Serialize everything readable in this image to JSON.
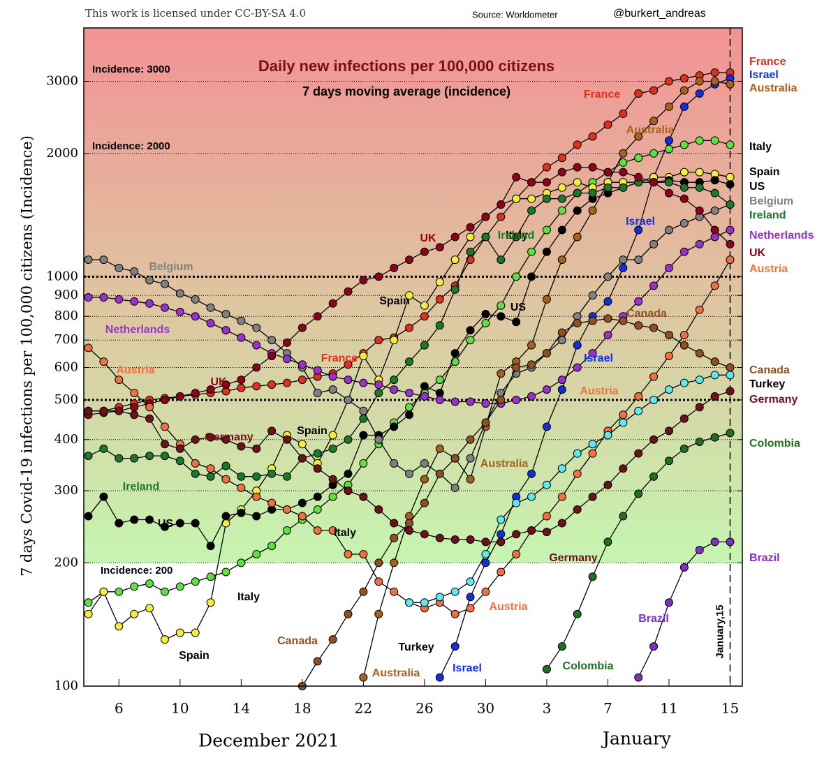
{
  "header": {
    "license": "This work is licensed under CC-BY-SA 4.0",
    "source": "Source:  Worldometer",
    "author": "@burkert_andreas"
  },
  "chart_data": {
    "type": "line",
    "log_scale_y": true,
    "title": "Daily new infections per 100,000 citizens",
    "subtitle": "7 days moving average (incidence)",
    "y_label": "7 days Covid-19 infections per 100,000 citizens (Incidence)",
    "x_label": "December 2021",
    "x_label_2": "January",
    "annotations": [
      "Incidence: 3000",
      "Incidence: 2000",
      "Incidence: 200"
    ],
    "marker_label": "January,15",
    "marker_x": 46,
    "shaded_above": 200,
    "major_grid": [
      500,
      1000
    ],
    "x": [
      4,
      5,
      6,
      7,
      8,
      9,
      10,
      11,
      12,
      13,
      14,
      15,
      16,
      17,
      18,
      19,
      20,
      21,
      22,
      23,
      24,
      25,
      26,
      27,
      28,
      29,
      30,
      31,
      32,
      33,
      34,
      35,
      36,
      37,
      38,
      39,
      40,
      41,
      42,
      43,
      44,
      45,
      46
    ],
    "xlim": [
      3.7,
      46.8
    ],
    "xticks": [
      6,
      10,
      14,
      18,
      22,
      26,
      30,
      {
        "value": 34,
        "label": "3"
      },
      {
        "value": 38,
        "label": "7"
      },
      {
        "value": 42,
        "label": "11"
      },
      {
        "value": 46,
        "label": "15"
      }
    ],
    "ylim": [
      100,
      4050
    ],
    "yticks": [
      100,
      200,
      300,
      400,
      500,
      600,
      700,
      800,
      900,
      1000,
      2000,
      3000
    ],
    "series": [
      {
        "name": "France",
        "color": "#e0301e",
        "values": [
          470,
          470,
          480,
          490,
          500,
          505,
          510,
          515,
          520,
          525,
          535,
          540,
          545,
          550,
          560,
          570,
          580,
          610,
          650,
          700,
          710,
          750,
          800,
          880,
          950,
          1100,
          1250,
          1400,
          1550,
          1700,
          1850,
          1950,
          2100,
          2200,
          2350,
          2500,
          2800,
          2850,
          3000,
          3050,
          3100,
          3150,
          3150
        ]
      },
      {
        "name": "Israel",
        "color": "#1030e0",
        "values": [
          null,
          null,
          null,
          null,
          null,
          null,
          null,
          null,
          null,
          null,
          null,
          null,
          null,
          null,
          null,
          null,
          null,
          null,
          null,
          null,
          null,
          null,
          null,
          105,
          125,
          165,
          200,
          235,
          290,
          330,
          430,
          530,
          680,
          800,
          870,
          1050,
          1300,
          1750,
          2150,
          2600,
          2800,
          2950,
          3050
        ]
      },
      {
        "name": "Australia",
        "color": "#a8601a",
        "values": [
          null,
          null,
          null,
          null,
          null,
          null,
          null,
          null,
          null,
          null,
          null,
          null,
          null,
          null,
          null,
          null,
          null,
          null,
          105,
          150,
          200,
          260,
          320,
          380,
          360,
          320,
          430,
          580,
          620,
          680,
          880,
          1100,
          1250,
          1450,
          1700,
          2000,
          2200,
          2400,
          2600,
          2850,
          3000,
          3000,
          2950
        ]
      },
      {
        "name": "Italy",
        "color": "#5ee040",
        "values": [
          160,
          170,
          170,
          175,
          178,
          170,
          175,
          180,
          185,
          190,
          200,
          210,
          220,
          240,
          255,
          270,
          290,
          310,
          350,
          390,
          440,
          480,
          520,
          560,
          620,
          700,
          770,
          850,
          1000,
          1150,
          1300,
          1450,
          1600,
          1700,
          1800,
          1900,
          1950,
          2000,
          2050,
          2100,
          2150,
          2150,
          2100
        ]
      },
      {
        "name": "Spain",
        "color": "#f4ee3a",
        "values": [
          150,
          170,
          140,
          150,
          155,
          130,
          135,
          135,
          160,
          250,
          270,
          300,
          340,
          410,
          390,
          350,
          410,
          500,
          640,
          560,
          700,
          900,
          850,
          970,
          1100,
          1250,
          1400,
          1500,
          1550,
          1550,
          1600,
          1650,
          1700,
          1650,
          1700,
          1700,
          1700,
          1750,
          1750,
          1800,
          1800,
          1780,
          1750
        ]
      },
      {
        "name": "US",
        "color": "#000000",
        "values": [
          260,
          290,
          250,
          255,
          255,
          245,
          250,
          250,
          220,
          260,
          265,
          260,
          270,
          270,
          280,
          290,
          310,
          330,
          410,
          410,
          430,
          460,
          540,
          520,
          650,
          740,
          810,
          800,
          775,
          1000,
          1150,
          1300,
          1450,
          1550,
          1600,
          1650,
          1700,
          1700,
          1720,
          1700,
          1700,
          1720,
          1680
        ]
      },
      {
        "name": "Belgium",
        "color": "#808080",
        "values": [
          1100,
          1100,
          1050,
          1030,
          980,
          960,
          910,
          880,
          840,
          810,
          780,
          750,
          700,
          650,
          600,
          520,
          530,
          500,
          470,
          400,
          350,
          330,
          350,
          330,
          305,
          360,
          440,
          520,
          580,
          600,
          650,
          700,
          800,
          900,
          1000,
          1100,
          1100,
          1200,
          1300,
          1350,
          1400,
          1450,
          1500
        ]
      },
      {
        "name": "Ireland",
        "color": "#1a7a2a",
        "values": [
          365,
          380,
          360,
          360,
          365,
          365,
          355,
          330,
          325,
          345,
          325,
          325,
          330,
          325,
          360,
          370,
          380,
          400,
          450,
          520,
          560,
          620,
          680,
          760,
          930,
          1150,
          1250,
          1100,
          1250,
          1450,
          1550,
          1550,
          1600,
          1600,
          1650,
          1650,
          1700,
          1700,
          1700,
          1650,
          1650,
          1600,
          1500
        ]
      },
      {
        "name": "Netherlands",
        "color": "#9a30d0",
        "values": [
          890,
          890,
          880,
          870,
          860,
          840,
          820,
          800,
          770,
          740,
          710,
          680,
          650,
          630,
          610,
          590,
          570,
          560,
          550,
          545,
          530,
          520,
          510,
          500,
          495,
          495,
          490,
          490,
          500,
          510,
          530,
          560,
          600,
          650,
          720,
          800,
          870,
          950,
          1050,
          1150,
          1200,
          1250,
          1300
        ]
      },
      {
        "name": "UK",
        "color": "#900018",
        "values": [
          460,
          465,
          470,
          480,
          490,
          500,
          510,
          520,
          530,
          545,
          560,
          600,
          640,
          690,
          750,
          800,
          860,
          920,
          980,
          1000,
          1050,
          1100,
          1150,
          1180,
          1250,
          1320,
          1400,
          1500,
          1750,
          1700,
          1700,
          1800,
          1850,
          1850,
          1800,
          1800,
          1750,
          1700,
          1600,
          1550,
          1450,
          1300,
          1200
        ]
      },
      {
        "name": "Austria",
        "color": "#f07040",
        "values": [
          670,
          620,
          560,
          520,
          480,
          430,
          390,
          350,
          340,
          320,
          305,
          290,
          280,
          270,
          260,
          240,
          240,
          210,
          210,
          180,
          170,
          160,
          155,
          160,
          150,
          155,
          170,
          190,
          210,
          240,
          260,
          290,
          330,
          370,
          420,
          460,
          510,
          570,
          640,
          720,
          830,
          950,
          1100
        ]
      },
      {
        "name": "Canada",
        "color": "#905020",
        "values": [
          null,
          null,
          null,
          null,
          null,
          null,
          null,
          null,
          null,
          null,
          null,
          null,
          null,
          null,
          100,
          115,
          130,
          150,
          170,
          200,
          230,
          250,
          280,
          330,
          360,
          400,
          440,
          500,
          600,
          610,
          650,
          730,
          770,
          780,
          790,
          780,
          760,
          750,
          720,
          680,
          650,
          620,
          600
        ]
      },
      {
        "name": "Turkey",
        "color": "#60e8f0",
        "values": [
          null,
          null,
          null,
          null,
          null,
          null,
          null,
          null,
          null,
          null,
          null,
          null,
          null,
          null,
          null,
          null,
          null,
          null,
          null,
          null,
          null,
          160,
          160,
          165,
          170,
          180,
          210,
          255,
          280,
          290,
          310,
          340,
          370,
          390,
          410,
          440,
          470,
          500,
          530,
          550,
          560,
          575,
          575
        ]
      },
      {
        "name": "Germany",
        "color": "#701018",
        "values": [
          470,
          470,
          470,
          460,
          450,
          390,
          380,
          400,
          405,
          400,
          385,
          380,
          420,
          400,
          360,
          340,
          320,
          300,
          290,
          270,
          250,
          240,
          235,
          230,
          228,
          228,
          225,
          225,
          235,
          240,
          238,
          250,
          270,
          290,
          310,
          340,
          370,
          400,
          420,
          450,
          480,
          510,
          525
        ]
      },
      {
        "name": "Colombia",
        "color": "#207020",
        "values": [
          null,
          null,
          null,
          null,
          null,
          null,
          null,
          null,
          null,
          null,
          null,
          null,
          null,
          null,
          null,
          null,
          null,
          null,
          null,
          null,
          null,
          null,
          null,
          null,
          null,
          null,
          null,
          null,
          null,
          null,
          110,
          125,
          150,
          185,
          225,
          260,
          295,
          325,
          355,
          380,
          395,
          405,
          415
        ]
      },
      {
        "name": "Brazil",
        "color": "#8030c0",
        "values": [
          null,
          null,
          null,
          null,
          null,
          null,
          null,
          null,
          null,
          null,
          null,
          null,
          null,
          null,
          null,
          null,
          null,
          null,
          null,
          null,
          null,
          null,
          null,
          null,
          null,
          null,
          null,
          null,
          null,
          null,
          null,
          null,
          null,
          null,
          null,
          null,
          105,
          125,
          160,
          195,
          215,
          225,
          225
        ]
      }
    ]
  }
}
